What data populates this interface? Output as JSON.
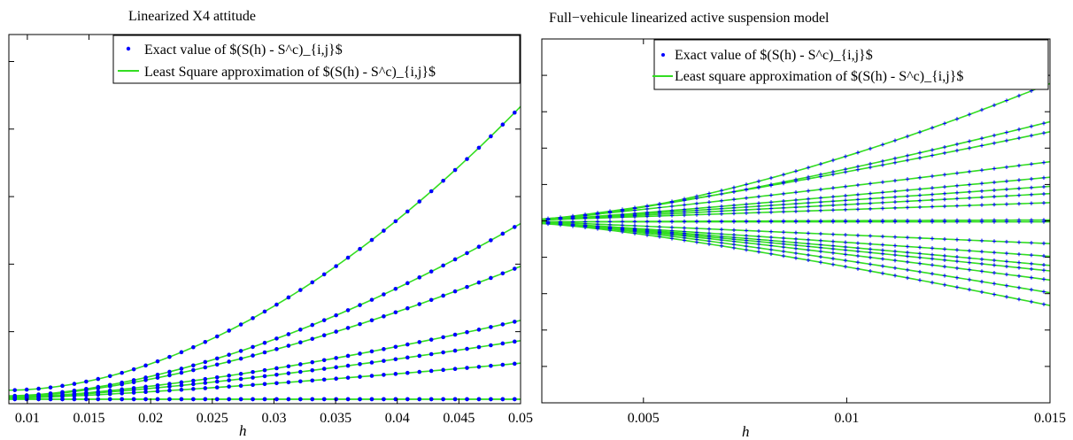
{
  "chart_data": [
    {
      "type": "line",
      "title": "Linearized X4 attitude",
      "xlabel": "h",
      "xlim": [
        0.0085,
        0.05
      ],
      "ylim": [
        -0.02,
        1.62
      ],
      "xticks": [
        0.01,
        0.015,
        0.02,
        0.025,
        0.03,
        0.035,
        0.04,
        0.045,
        0.05
      ],
      "xtick_labels": [
        "0.01",
        "0.015",
        "0.02",
        "0.025",
        "0.03",
        "0.035",
        "0.04",
        "0.045",
        "0.05"
      ],
      "yticks": [
        0.3,
        0.6,
        0.9,
        1.2,
        1.5
      ],
      "ytick_labels": [],
      "legend": {
        "position": "top-right",
        "entries": [
          "Exact value of $(S(h) - S^c)_{i,j}$",
          "Least Square approximation of $(S(h) - S^c)_{i,j}$"
        ]
      },
      "colors": {
        "exact": "#0000ff",
        "fit": "#33dd22"
      },
      "samples": 43,
      "series": [
        {
          "start": 0.04,
          "end": 1.3,
          "power": 1.85
        },
        {
          "start": 0.015,
          "end": 0.78,
          "power": 1.7
        },
        {
          "start": 0.01,
          "end": 0.59,
          "power": 1.55
        },
        {
          "start": 0.008,
          "end": 0.35,
          "power": 1.5
        },
        {
          "start": 0.006,
          "end": 0.26,
          "power": 1.4
        },
        {
          "start": 0.004,
          "end": 0.16,
          "power": 1.3
        },
        {
          "start": 0.0,
          "end": 0.0,
          "power": 1.0
        },
        {
          "start": 0.0,
          "end": 0.0,
          "power": 1.0
        }
      ]
    },
    {
      "type": "line",
      "title": "Full−vehicule linearized active suspension model",
      "xlabel": "h",
      "xlim": [
        0.0025,
        0.015
      ],
      "ylim": [
        -0.1,
        0.1
      ],
      "xticks": [
        0.005,
        0.01,
        0.015
      ],
      "xtick_labels": [
        "0.005",
        "0.01",
        "0.015"
      ],
      "yticks": [
        -0.08,
        -0.06,
        -0.04,
        -0.02,
        0.0,
        0.02,
        0.04,
        0.06,
        0.08
      ],
      "ytick_labels": [],
      "legend": {
        "position": "top-right",
        "entries": [
          "Exact value of $(S(h) - S^c)_{i,j}$",
          "Least square approximation of $(S(h) - S^c)_{i,j}$"
        ]
      },
      "colors": {
        "exact": "#0000ff",
        "fit": "#33dd22"
      },
      "samples": 41,
      "series": [
        {
          "start": 0.001,
          "end": 0.0755,
          "power": 1.5
        },
        {
          "start": 0.001,
          "end": 0.0545,
          "power": 1.3
        },
        {
          "start": 0.001,
          "end": 0.049,
          "power": 1.2
        },
        {
          "start": 0.001,
          "end": 0.0325,
          "power": 1.1
        },
        {
          "start": 0.0005,
          "end": 0.024,
          "power": 1.1
        },
        {
          "start": 0.0005,
          "end": 0.019,
          "power": 1.05
        },
        {
          "start": 0.0005,
          "end": 0.015,
          "power": 1.05
        },
        {
          "start": 0.0005,
          "end": 0.01,
          "power": 1.0
        },
        {
          "start": -0.0005,
          "end": 0.0005,
          "power": 1.0
        },
        {
          "start": -0.0005,
          "end": -0.0005,
          "power": 1.0
        },
        {
          "start": -0.0005,
          "end": -0.0125,
          "power": 1.0
        },
        {
          "start": -0.001,
          "end": -0.0195,
          "power": 1.05
        },
        {
          "start": -0.001,
          "end": -0.0245,
          "power": 1.1
        },
        {
          "start": -0.001,
          "end": -0.0275,
          "power": 1.1
        },
        {
          "start": -0.001,
          "end": -0.0325,
          "power": 1.15
        },
        {
          "start": -0.001,
          "end": -0.0395,
          "power": 1.2
        },
        {
          "start": -0.0015,
          "end": -0.0465,
          "power": 1.25
        }
      ]
    }
  ]
}
